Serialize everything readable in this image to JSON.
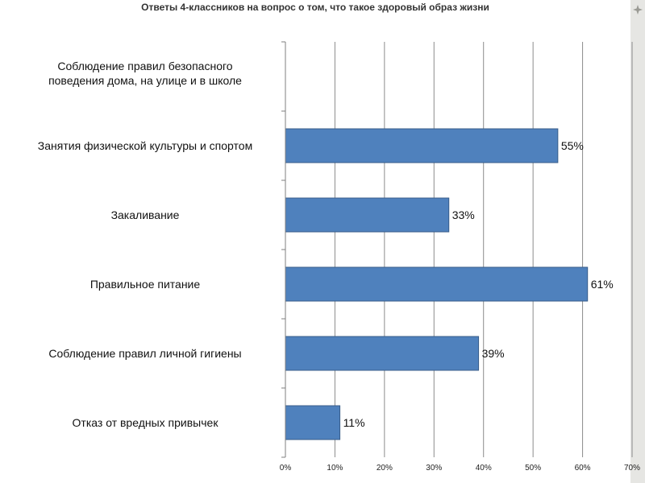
{
  "title": "Ответы 4-классников на вопрос о том, что такое здоровый образ жизни",
  "chart_data": {
    "type": "bar",
    "orientation": "horizontal",
    "title": "Ответы 4-классников на вопрос о том, что такое здоровый образ жизни",
    "categories": [
      [
        "Соблюдение правил безопасного",
        "поведения дома, на улице и в школе"
      ],
      [
        "Занятия физической культуры и спортом"
      ],
      [
        "Закаливание"
      ],
      [
        "Правильное питание"
      ],
      [
        "Соблюдение правил личной гигиены"
      ],
      [
        "Отказ от вредных привычек"
      ]
    ],
    "values": [
      null,
      55,
      33,
      61,
      39,
      11
    ],
    "data_labels": [
      "",
      "55%",
      "33%",
      "61%",
      "39%",
      "11%"
    ],
    "xlim": [
      0,
      70
    ],
    "x_ticks": [
      "0%",
      "10%",
      "20%",
      "30%",
      "40%",
      "50%",
      "60%",
      "70%"
    ],
    "grid": true,
    "bar_color": "#4f81bd",
    "bar_edge_color": "#385d8a",
    "grid_color": "#8c8c8c"
  }
}
